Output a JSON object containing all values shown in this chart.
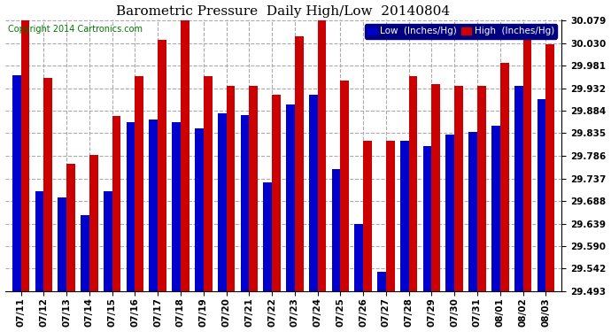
{
  "title": "Barometric Pressure  Daily High/Low  20140804",
  "copyright": "Copyright 2014 Cartronics.com",
  "legend_low": "Low  (Inches/Hg)",
  "legend_high": "High  (Inches/Hg)",
  "dates": [
    "07/11",
    "07/12",
    "07/13",
    "07/14",
    "07/15",
    "07/16",
    "07/17",
    "07/18",
    "07/19",
    "07/20",
    "07/21",
    "07/22",
    "07/23",
    "07/24",
    "07/25",
    "07/26",
    "07/27",
    "07/28",
    "07/29",
    "07/30",
    "07/31",
    "08/01",
    "08/02",
    "08/03"
  ],
  "low": [
    29.96,
    29.71,
    29.695,
    29.658,
    29.71,
    29.858,
    29.865,
    29.858,
    29.845,
    29.878,
    29.875,
    29.728,
    29.898,
    29.918,
    29.758,
    29.638,
    29.535,
    29.818,
    29.808,
    29.832,
    29.838,
    29.852,
    29.938,
    29.908
  ],
  "high": [
    30.079,
    29.955,
    29.768,
    29.788,
    29.872,
    29.958,
    30.038,
    30.079,
    29.958,
    29.938,
    29.938,
    29.918,
    30.045,
    30.079,
    29.948,
    29.818,
    29.818,
    29.958,
    29.942,
    29.938,
    29.938,
    29.988,
    30.058,
    30.028
  ],
  "ylim_min": 29.493,
  "ylim_max": 30.079,
  "yticks": [
    29.493,
    29.542,
    29.59,
    29.639,
    29.688,
    29.737,
    29.786,
    29.835,
    29.884,
    29.932,
    29.981,
    30.03,
    30.079
  ],
  "bar_width": 0.38,
  "low_color": "#0000cc",
  "high_color": "#cc0000",
  "bg_color": "#ffffff",
  "plot_bg_color": "#ffffff",
  "grid_color": "#aaaaaa",
  "title_fontsize": 11,
  "copyright_fontsize": 7,
  "tick_fontsize": 7.5,
  "legend_fontsize": 7.5
}
